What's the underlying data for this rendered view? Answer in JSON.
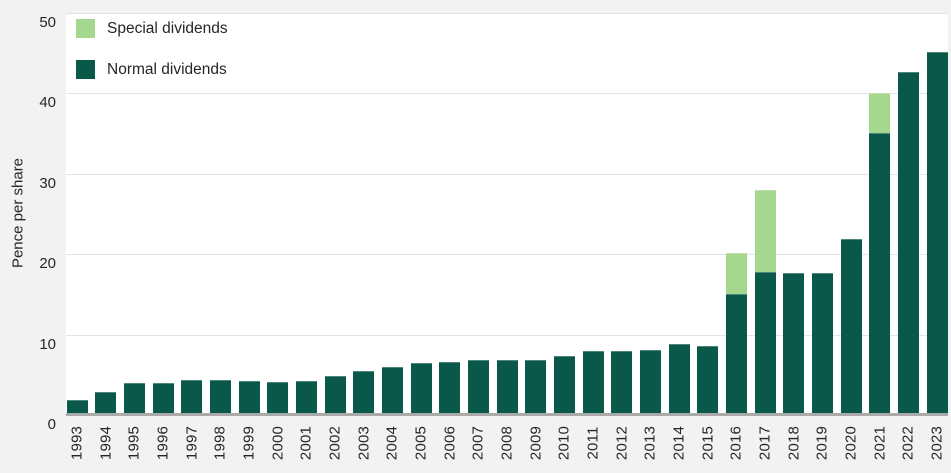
{
  "chart_data": {
    "type": "bar",
    "stacked": true,
    "title": "",
    "xlabel": "",
    "ylabel": "Pence per share",
    "ylim": [
      0,
      50
    ],
    "yticks": [
      0,
      10,
      20,
      30,
      40,
      50
    ],
    "grid": "horizontal",
    "legend_position": "top-left",
    "categories": [
      "1993",
      "1994",
      "1995",
      "1996",
      "1997",
      "1998",
      "1999",
      "2000",
      "2001",
      "2002",
      "2003",
      "2004",
      "2005",
      "2006",
      "2007",
      "2008",
      "2009",
      "2010",
      "2011",
      "2012",
      "2013",
      "2014",
      "2015",
      "2016",
      "2017",
      "2018",
      "2019",
      "2020",
      "2021",
      "2022",
      "2023"
    ],
    "series": [
      {
        "name": "Normal dividends",
        "color": "#095849",
        "values": [
          1.9,
          2.9,
          4.0,
          4.0,
          4.4,
          4.4,
          4.2,
          4.1,
          4.2,
          4.8,
          5.5,
          6.0,
          6.5,
          6.6,
          6.9,
          6.9,
          6.9,
          7.4,
          8.0,
          7.9,
          8.1,
          8.8,
          8.6,
          15.0,
          17.8,
          17.7,
          17.7,
          21.9,
          35.1,
          42.7,
          45.2
        ]
      },
      {
        "name": "Special dividends",
        "color": "#a6d78e",
        "values": [
          0,
          0,
          0,
          0,
          0,
          0,
          0,
          0,
          0,
          0,
          0,
          0,
          0,
          0,
          0,
          0,
          0,
          0,
          0,
          0,
          0,
          0,
          0,
          5.1,
          10.2,
          0,
          0,
          0,
          5.0,
          0,
          0
        ]
      }
    ]
  },
  "legend": {
    "items": [
      {
        "label": "Special dividends",
        "color": "#a6d78e"
      },
      {
        "label": "Normal dividends",
        "color": "#095849"
      }
    ]
  },
  "colors": {
    "page_background": "#f2f2f2",
    "plot_background": "#ffffff",
    "gridline": "#e3e3e3",
    "axis_line": "#a9a9a9",
    "text": "#262626"
  }
}
